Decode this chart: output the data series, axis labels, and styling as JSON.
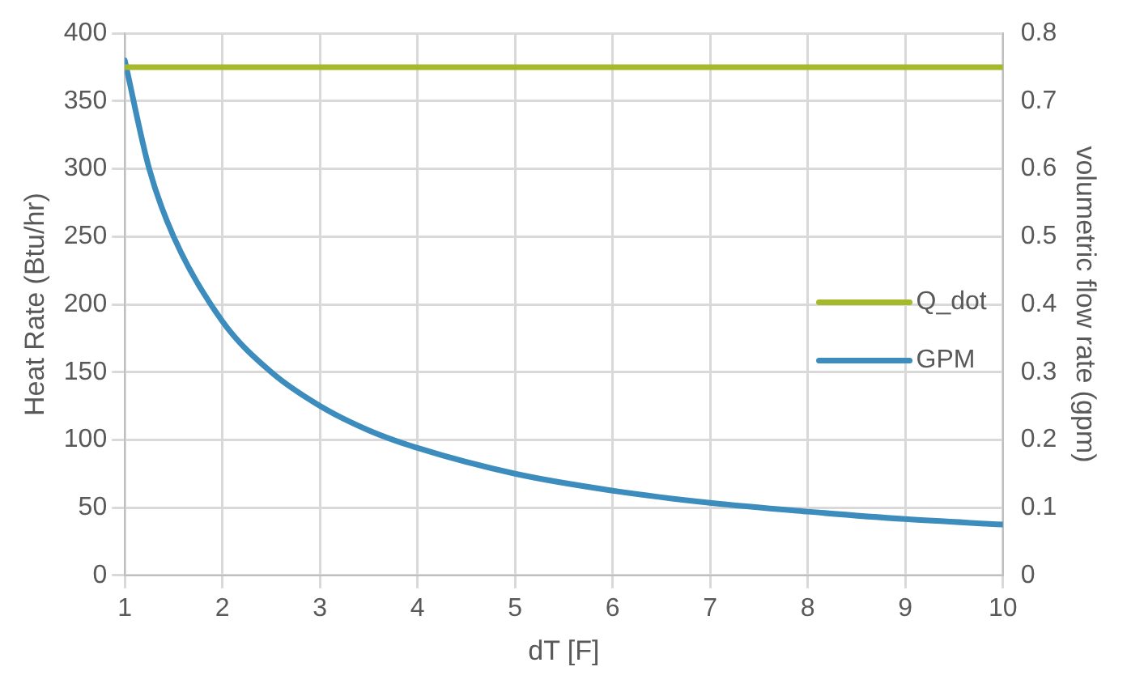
{
  "chart_data": {
    "type": "line",
    "xlabel": "dT [F]",
    "ylabel": "Heat Rate (Btu/hr)",
    "y2label": "volumetric flow rate (gpm)",
    "x": [
      1,
      1.25,
      1.5,
      2,
      2.5,
      3,
      3.5,
      4,
      5,
      6,
      7,
      8,
      9,
      10
    ],
    "series": [
      {
        "name": "Q_dot",
        "color": "#a5b92b",
        "values": [
          375,
          375,
          375,
          375,
          375,
          375,
          375,
          375,
          375,
          375,
          375,
          375,
          375,
          375
        ]
      },
      {
        "name": "GPM",
        "color": "#3c8dbd",
        "axis": "y2",
        "values": [
          0.76,
          0.6,
          0.5,
          0.375,
          0.3,
          0.25,
          0.214,
          0.188,
          0.15,
          0.125,
          0.107,
          0.094,
          0.083,
          0.075
        ]
      }
    ],
    "xlim": [
      1,
      10
    ],
    "xticks": [
      1,
      2,
      3,
      4,
      5,
      6,
      7,
      8,
      9,
      10
    ],
    "ylim": [
      0,
      400
    ],
    "yticks": [
      0,
      50,
      100,
      150,
      200,
      250,
      300,
      350,
      400
    ],
    "y2lim": [
      0,
      0.8
    ],
    "y2ticks": [
      0,
      0.1,
      0.2,
      0.3,
      0.4,
      0.5,
      0.6,
      0.7,
      0.8
    ],
    "grid": true,
    "legend": "right",
    "marker": "none",
    "line_style": "solid"
  }
}
